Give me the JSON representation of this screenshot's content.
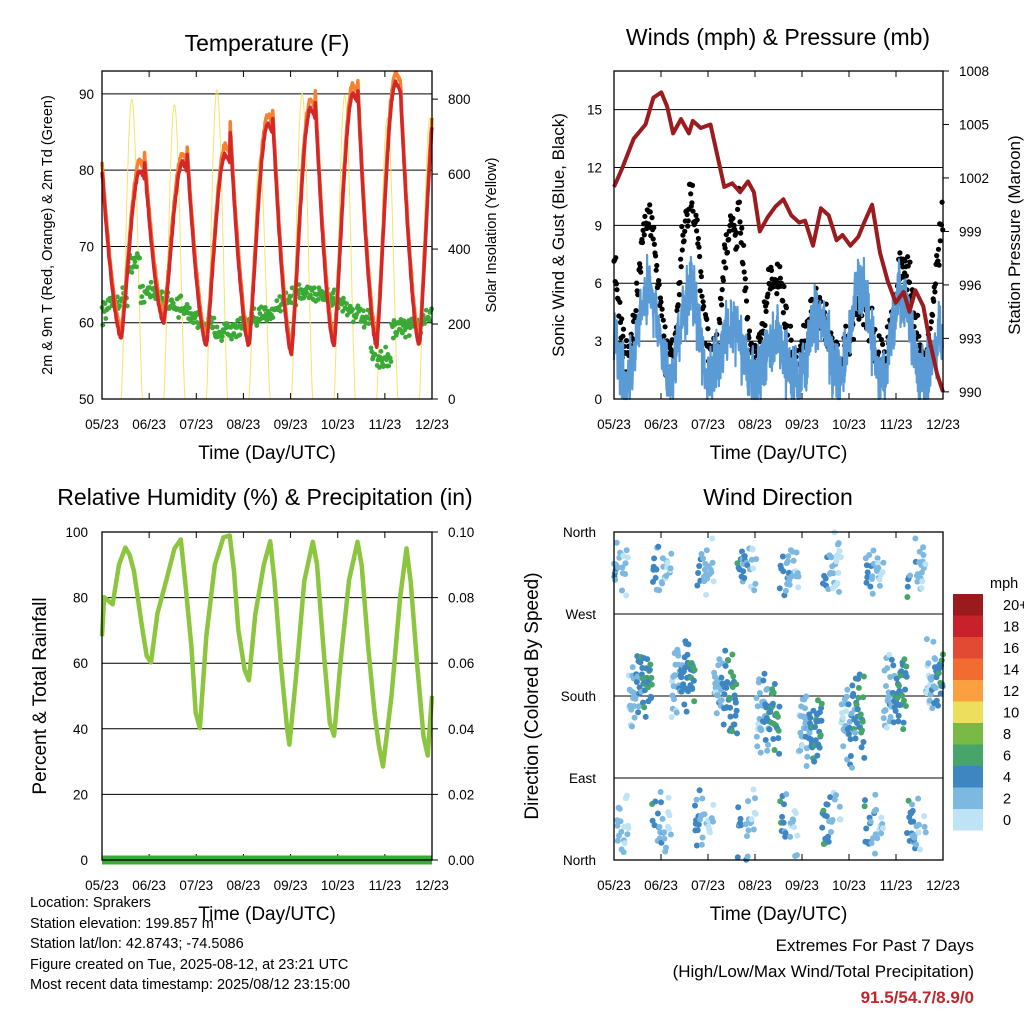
{
  "info": {
    "location": "Location: Sprakers",
    "elevation": "Station elevation: 199.857 m",
    "latlon": "Station lat/lon: 42.8743; -74.5086",
    "created": "Figure created on Tue, 2025-08-12, at 23:21 UTC",
    "recent": "Most recent data timestamp: 2025/08/12 23:15:00"
  },
  "extremes": {
    "title": "Extremes For Past 7 Days",
    "subtitle": "(High/Low/Max Wind/Total Precipitation)",
    "values": "91.5/54.7/8.9/0",
    "color": "#c0272d"
  },
  "chart_data": [
    {
      "type": "line",
      "title": "Temperature (F)",
      "xlabel": "Time (Day/UTC)",
      "ylabel": "2m & 9m T (Red, Orange) & 2m Td (Green)",
      "y2label": "Solar Insolation (Yellow)",
      "xticks": [
        "05/23",
        "06/23",
        "07/23",
        "08/23",
        "09/23",
        "10/23",
        "11/23",
        "12/23"
      ],
      "ylim": [
        50,
        93
      ],
      "yticks": [
        50,
        60,
        70,
        80,
        90
      ],
      "y2lim": [
        0,
        875
      ],
      "y2ticks": [
        0,
        200,
        400,
        600,
        800
      ],
      "series": [
        {
          "name": "2m T",
          "color": "#d62728",
          "highs": [
            80,
            81,
            82,
            86,
            88,
            90,
            91.5
          ],
          "lows": [
            58,
            60,
            57,
            57,
            56,
            57,
            57
          ]
        },
        {
          "name": "9m T",
          "color": "#f58231"
        },
        {
          "name": "2m Td",
          "color": "#3aa935",
          "mean": 62
        },
        {
          "name": "Solar",
          "color": "#f6e36b",
          "peaks": [
            800,
            785,
            825,
            640,
            815,
            810,
            750
          ]
        }
      ]
    },
    {
      "type": "line",
      "title": "Winds (mph) & Pressure (mb)",
      "xlabel": "Time (Day/UTC)",
      "ylabel": "Sonic Wind & Gust (Blue, Black)",
      "y2label": "Station Pressure (Maroon)",
      "xticks": [
        "05/23",
        "06/23",
        "07/23",
        "08/23",
        "09/23",
        "10/23",
        "11/23",
        "12/23"
      ],
      "ylim": [
        0,
        17
      ],
      "yticks": [
        0,
        3,
        6,
        9,
        12,
        15
      ],
      "y2lim": [
        989.6,
        1008
      ],
      "y2ticks": [
        990,
        993,
        996,
        999,
        1002,
        1005,
        1008
      ],
      "pressure": [
        [
          0,
          1001.5
        ],
        [
          0.2,
          1002.5
        ],
        [
          0.5,
          1004.2
        ],
        [
          0.8,
          1005
        ],
        [
          1.0,
          1006.5
        ],
        [
          1.2,
          1006.8
        ],
        [
          1.35,
          1006
        ],
        [
          1.5,
          1004.5
        ],
        [
          1.7,
          1005.3
        ],
        [
          1.9,
          1004.5
        ],
        [
          2.0,
          1005.2
        ],
        [
          2.2,
          1004.8
        ],
        [
          2.45,
          1005
        ],
        [
          2.6,
          1003.5
        ],
        [
          2.8,
          1001.5
        ],
        [
          3.0,
          1001.7
        ],
        [
          3.2,
          1001.2
        ],
        [
          3.4,
          1001.8
        ],
        [
          3.55,
          1001.2
        ],
        [
          3.7,
          999
        ],
        [
          3.9,
          999.8
        ],
        [
          4.1,
          1000.4
        ],
        [
          4.3,
          1000.8
        ],
        [
          4.5,
          999.9
        ],
        [
          4.7,
          999.5
        ],
        [
          4.85,
          999.6
        ],
        [
          5.05,
          998.2
        ],
        [
          5.25,
          1000.3
        ],
        [
          5.45,
          999.9
        ],
        [
          5.65,
          998.5
        ],
        [
          5.8,
          998.8
        ],
        [
          6.0,
          998.2
        ],
        [
          6.2,
          998.7
        ],
        [
          6.35,
          999.5
        ],
        [
          6.55,
          1000.5
        ],
        [
          6.75,
          997.8
        ],
        [
          6.95,
          996.2
        ],
        [
          7.15,
          995
        ],
        [
          7.35,
          995.6
        ],
        [
          7.5,
          994.5
        ],
        [
          7.65,
          995.7
        ],
        [
          7.85,
          994.8
        ],
        [
          8.0,
          993
        ],
        [
          8.2,
          991
        ],
        [
          8.35,
          990
        ]
      ]
    },
    {
      "type": "line",
      "title": "Relative Humidity (%) & Precipitation (in)",
      "xlabel": "Time (Day/UTC)",
      "ylabel": "Percent & Total Rainfall",
      "xticks": [
        "05/23",
        "06/23",
        "07/23",
        "08/23",
        "09/23",
        "10/23",
        "11/23",
        "12/23"
      ],
      "ylim": [
        0,
        100
      ],
      "yticks": [
        0,
        20,
        40,
        60,
        80,
        100
      ],
      "y2lim": [
        0,
        0.1
      ],
      "y2ticks": [
        "0.00",
        "0.02",
        "0.04",
        "0.06",
        "0.08",
        "0.10"
      ],
      "series": [
        {
          "name": "RH",
          "color": "#8cc63f",
          "points": [
            [
              0,
              68
            ],
            [
              0.05,
              80
            ],
            [
              0.25,
              78
            ],
            [
              0.4,
              90
            ],
            [
              0.55,
              95
            ],
            [
              0.65,
              93
            ],
            [
              0.75,
              88
            ],
            [
              0.95,
              70
            ],
            [
              1.05,
              62
            ],
            [
              1.15,
              60
            ],
            [
              1.3,
              75
            ],
            [
              1.5,
              85
            ],
            [
              1.7,
              95
            ],
            [
              1.85,
              98
            ],
            [
              1.95,
              85
            ],
            [
              2.1,
              65
            ],
            [
              2.2,
              45
            ],
            [
              2.3,
              40
            ],
            [
              2.45,
              68
            ],
            [
              2.65,
              90
            ],
            [
              2.85,
              98
            ],
            [
              3.0,
              99
            ],
            [
              3.1,
              88
            ],
            [
              3.2,
              70
            ],
            [
              3.35,
              58
            ],
            [
              3.45,
              55
            ],
            [
              3.6,
              75
            ],
            [
              3.8,
              90
            ],
            [
              3.95,
              97
            ],
            [
              4.05,
              85
            ],
            [
              4.2,
              60
            ],
            [
              4.35,
              40
            ],
            [
              4.4,
              35
            ],
            [
              4.55,
              55
            ],
            [
              4.75,
              85
            ],
            [
              4.95,
              97
            ],
            [
              5.05,
              90
            ],
            [
              5.2,
              65
            ],
            [
              5.35,
              42
            ],
            [
              5.45,
              38
            ],
            [
              5.6,
              60
            ],
            [
              5.8,
              85
            ],
            [
              6.0,
              97
            ],
            [
              6.1,
              90
            ],
            [
              6.25,
              65
            ],
            [
              6.4,
              45
            ],
            [
              6.5,
              35
            ],
            [
              6.6,
              28
            ],
            [
              6.8,
              50
            ],
            [
              7.0,
              80
            ],
            [
              7.15,
              95
            ],
            [
              7.25,
              85
            ],
            [
              7.4,
              60
            ],
            [
              7.55,
              38
            ],
            [
              7.65,
              32
            ],
            [
              7.75,
              50
            ]
          ]
        },
        {
          "name": "Precipitation",
          "color": "#3aa935",
          "total": 0
        }
      ]
    },
    {
      "type": "scatter",
      "title": "Wind Direction",
      "xlabel": "Time (Day/UTC)",
      "ylabel": "Direction (Colored By Speed)",
      "xticks": [
        "05/23",
        "06/23",
        "07/23",
        "08/23",
        "09/23",
        "10/23",
        "11/23",
        "12/23"
      ],
      "yticks": [
        "North",
        "East",
        "South",
        "West",
        "North"
      ],
      "ylim": [
        0,
        360
      ],
      "colorbar": {
        "title": "mph",
        "labels": [
          "20+",
          "18",
          "16",
          "14",
          "12",
          "10",
          "8",
          "6",
          "4",
          "2",
          "0"
        ],
        "colors": [
          "#9b1a1c",
          "#c8212b",
          "#e34a33",
          "#f26b30",
          "#fba041",
          "#ecdf5b",
          "#79ba46",
          "#47a56a",
          "#3d86c1",
          "#7cb8e0",
          "#bde3f5"
        ]
      }
    }
  ]
}
